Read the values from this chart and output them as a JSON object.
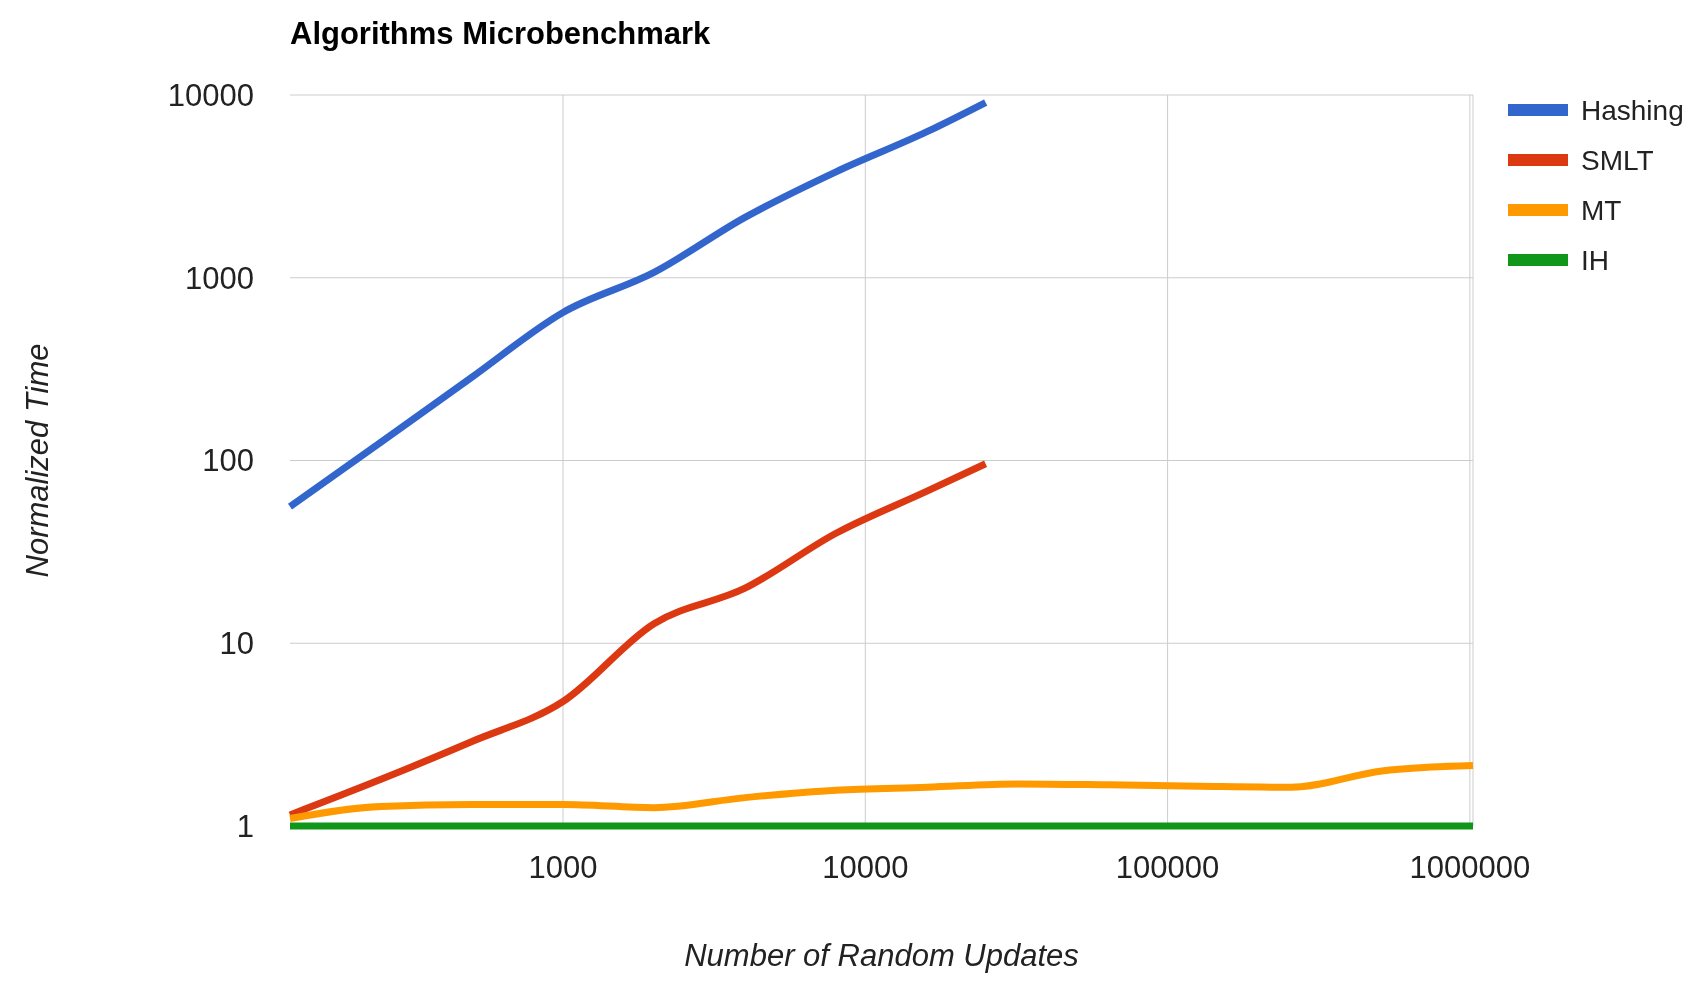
{
  "chart_data": {
    "type": "line",
    "title": "Algorithms Microbenchmark",
    "xlabel": "Number of Random Updates",
    "ylabel": "Normalized Time",
    "log": "xy",
    "grid": true,
    "legend": "right",
    "line_style": "solid",
    "marker": "none",
    "xlim": [
      125,
      1024000
    ],
    "xticks": [
      1000,
      10000,
      100000,
      1000000
    ],
    "ylim": [
      1,
      10000
    ],
    "yticks": [
      1,
      10,
      100,
      1000,
      10000
    ],
    "series": [
      {
        "name": "Hashing",
        "color": "#3366cc",
        "x": [
          125,
          250,
          500,
          1000,
          2000,
          4000,
          8000,
          16000,
          25000
        ],
        "values": [
          56,
          126,
          286,
          646,
          1070,
          2140,
          3800,
          6300,
          9100
        ]
      },
      {
        "name": "SMLT",
        "color": "#dc3912",
        "x": [
          125,
          250,
          500,
          1000,
          2000,
          4000,
          8000,
          16000,
          25000
        ],
        "values": [
          1.15,
          1.8,
          2.9,
          4.8,
          12.8,
          20,
          40,
          68,
          96
        ]
      },
      {
        "name": "MT",
        "color": "#ff9900",
        "x": [
          125,
          250,
          500,
          1000,
          2000,
          4000,
          8000,
          16000,
          32000,
          64000,
          128000,
          256000,
          512000,
          1024000
        ],
        "values": [
          1.1,
          1.28,
          1.31,
          1.31,
          1.26,
          1.43,
          1.57,
          1.63,
          1.7,
          1.68,
          1.65,
          1.63,
          2.0,
          2.14
        ]
      },
      {
        "name": "IH",
        "color": "#109618",
        "x": [
          125,
          1024000
        ],
        "values": [
          1,
          1
        ]
      }
    ]
  }
}
